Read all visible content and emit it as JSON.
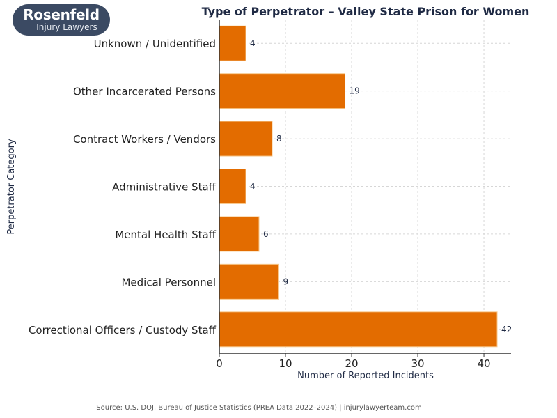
{
  "logo": {
    "line1": "Rosenfeld",
    "line2": "Injury Lawyers"
  },
  "chart_data": {
    "type": "bar",
    "orientation": "horizontal",
    "title": "Type of Perpetrator – Valley State Prison for Women",
    "xlabel": "Number of Reported Incidents",
    "ylabel": "Perpetrator Category",
    "categories": [
      "Unknown / Unidentified",
      "Other Incarcerated Persons",
      "Contract Workers / Vendors",
      "Administrative Staff",
      "Mental Health Staff",
      "Medical Personnel",
      "Correctional Officers / Custody Staff"
    ],
    "values": [
      4,
      19,
      8,
      4,
      6,
      9,
      42
    ],
    "xlim": [
      0,
      44.1
    ],
    "xticks": [
      0,
      10,
      20,
      30,
      40
    ],
    "grid": true,
    "bar_color": "#e36c00",
    "data_labels": true
  },
  "source": "Source: U.S. DOJ, Bureau of Justice Statistics (PREA Data 2022–2024) | injurylawyerteam.com"
}
